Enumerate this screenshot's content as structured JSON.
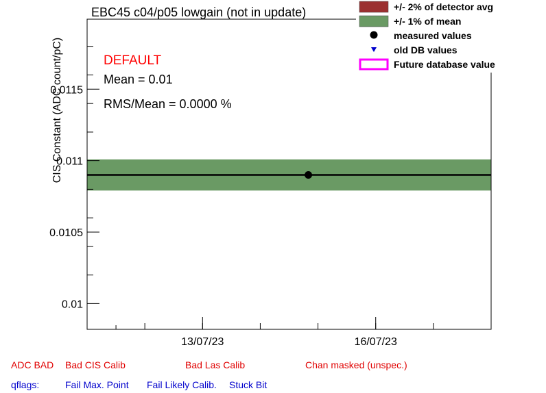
{
  "chart_data": {
    "type": "scatter",
    "title": "EBC45 c04/p05 lowgain (not in update)",
    "ylabel": "CIS Constant (ADC count/pC)",
    "xlabel": "",
    "ylim": [
      0.00982,
      0.01199
    ],
    "yticks": [
      0.01,
      0.0105,
      0.011,
      0.0115
    ],
    "yticklabels": [
      "0.01",
      "0.0105",
      "0.011",
      "0.0115"
    ],
    "x_date_range": [
      "2023-07-11",
      "2023-07-18"
    ],
    "xticklabels": [
      {
        "date": "2023-07-13",
        "label": "13/07/23"
      },
      {
        "date": "2023-07-16",
        "label": "16/07/23"
      }
    ],
    "mean": 0.0109,
    "band_1pct": [
      0.010791,
      0.011009
    ],
    "measured": [
      {
        "x": "2023-07-14T20:00",
        "y": 0.0109
      }
    ],
    "mean_line_y": 0.0109,
    "annotations": {
      "status": "DEFAULT",
      "mean_text": "Mean = 0.01",
      "rms_text": "RMS/Mean = 0.0000 %"
    },
    "legend": {
      "placement": "top-right",
      "entries": [
        {
          "label": "+/- 2% of detector avg",
          "color": "#9b3030",
          "kind": "box"
        },
        {
          "label": "+/- 1% of mean",
          "color": "#6a9a64",
          "kind": "box"
        },
        {
          "label": "measured values",
          "color": "#000000",
          "kind": "dot"
        },
        {
          "label": "old DB values",
          "color": "#0000cc",
          "kind": "triangle"
        },
        {
          "label": "Future database value",
          "color": "#ff00ff",
          "kind": "outline"
        }
      ]
    },
    "grid": false
  },
  "flags": {
    "row1": [
      {
        "label": "ADC BAD",
        "color": "#e00000"
      },
      {
        "label": "Bad CIS Calib",
        "color": "#e00000"
      },
      {
        "label": "Bad Las Calib",
        "color": "#e00000"
      },
      {
        "label": "Chan masked (unspec.)",
        "color": "#e00000"
      }
    ],
    "row2": [
      {
        "label": "qflags:",
        "color": "#0000cc"
      },
      {
        "label": "Fail Max. Point",
        "color": "#0000cc"
      },
      {
        "label": "Fail Likely Calib.",
        "color": "#0000cc"
      },
      {
        "label": "Stuck Bit",
        "color": "#0000cc"
      }
    ]
  }
}
